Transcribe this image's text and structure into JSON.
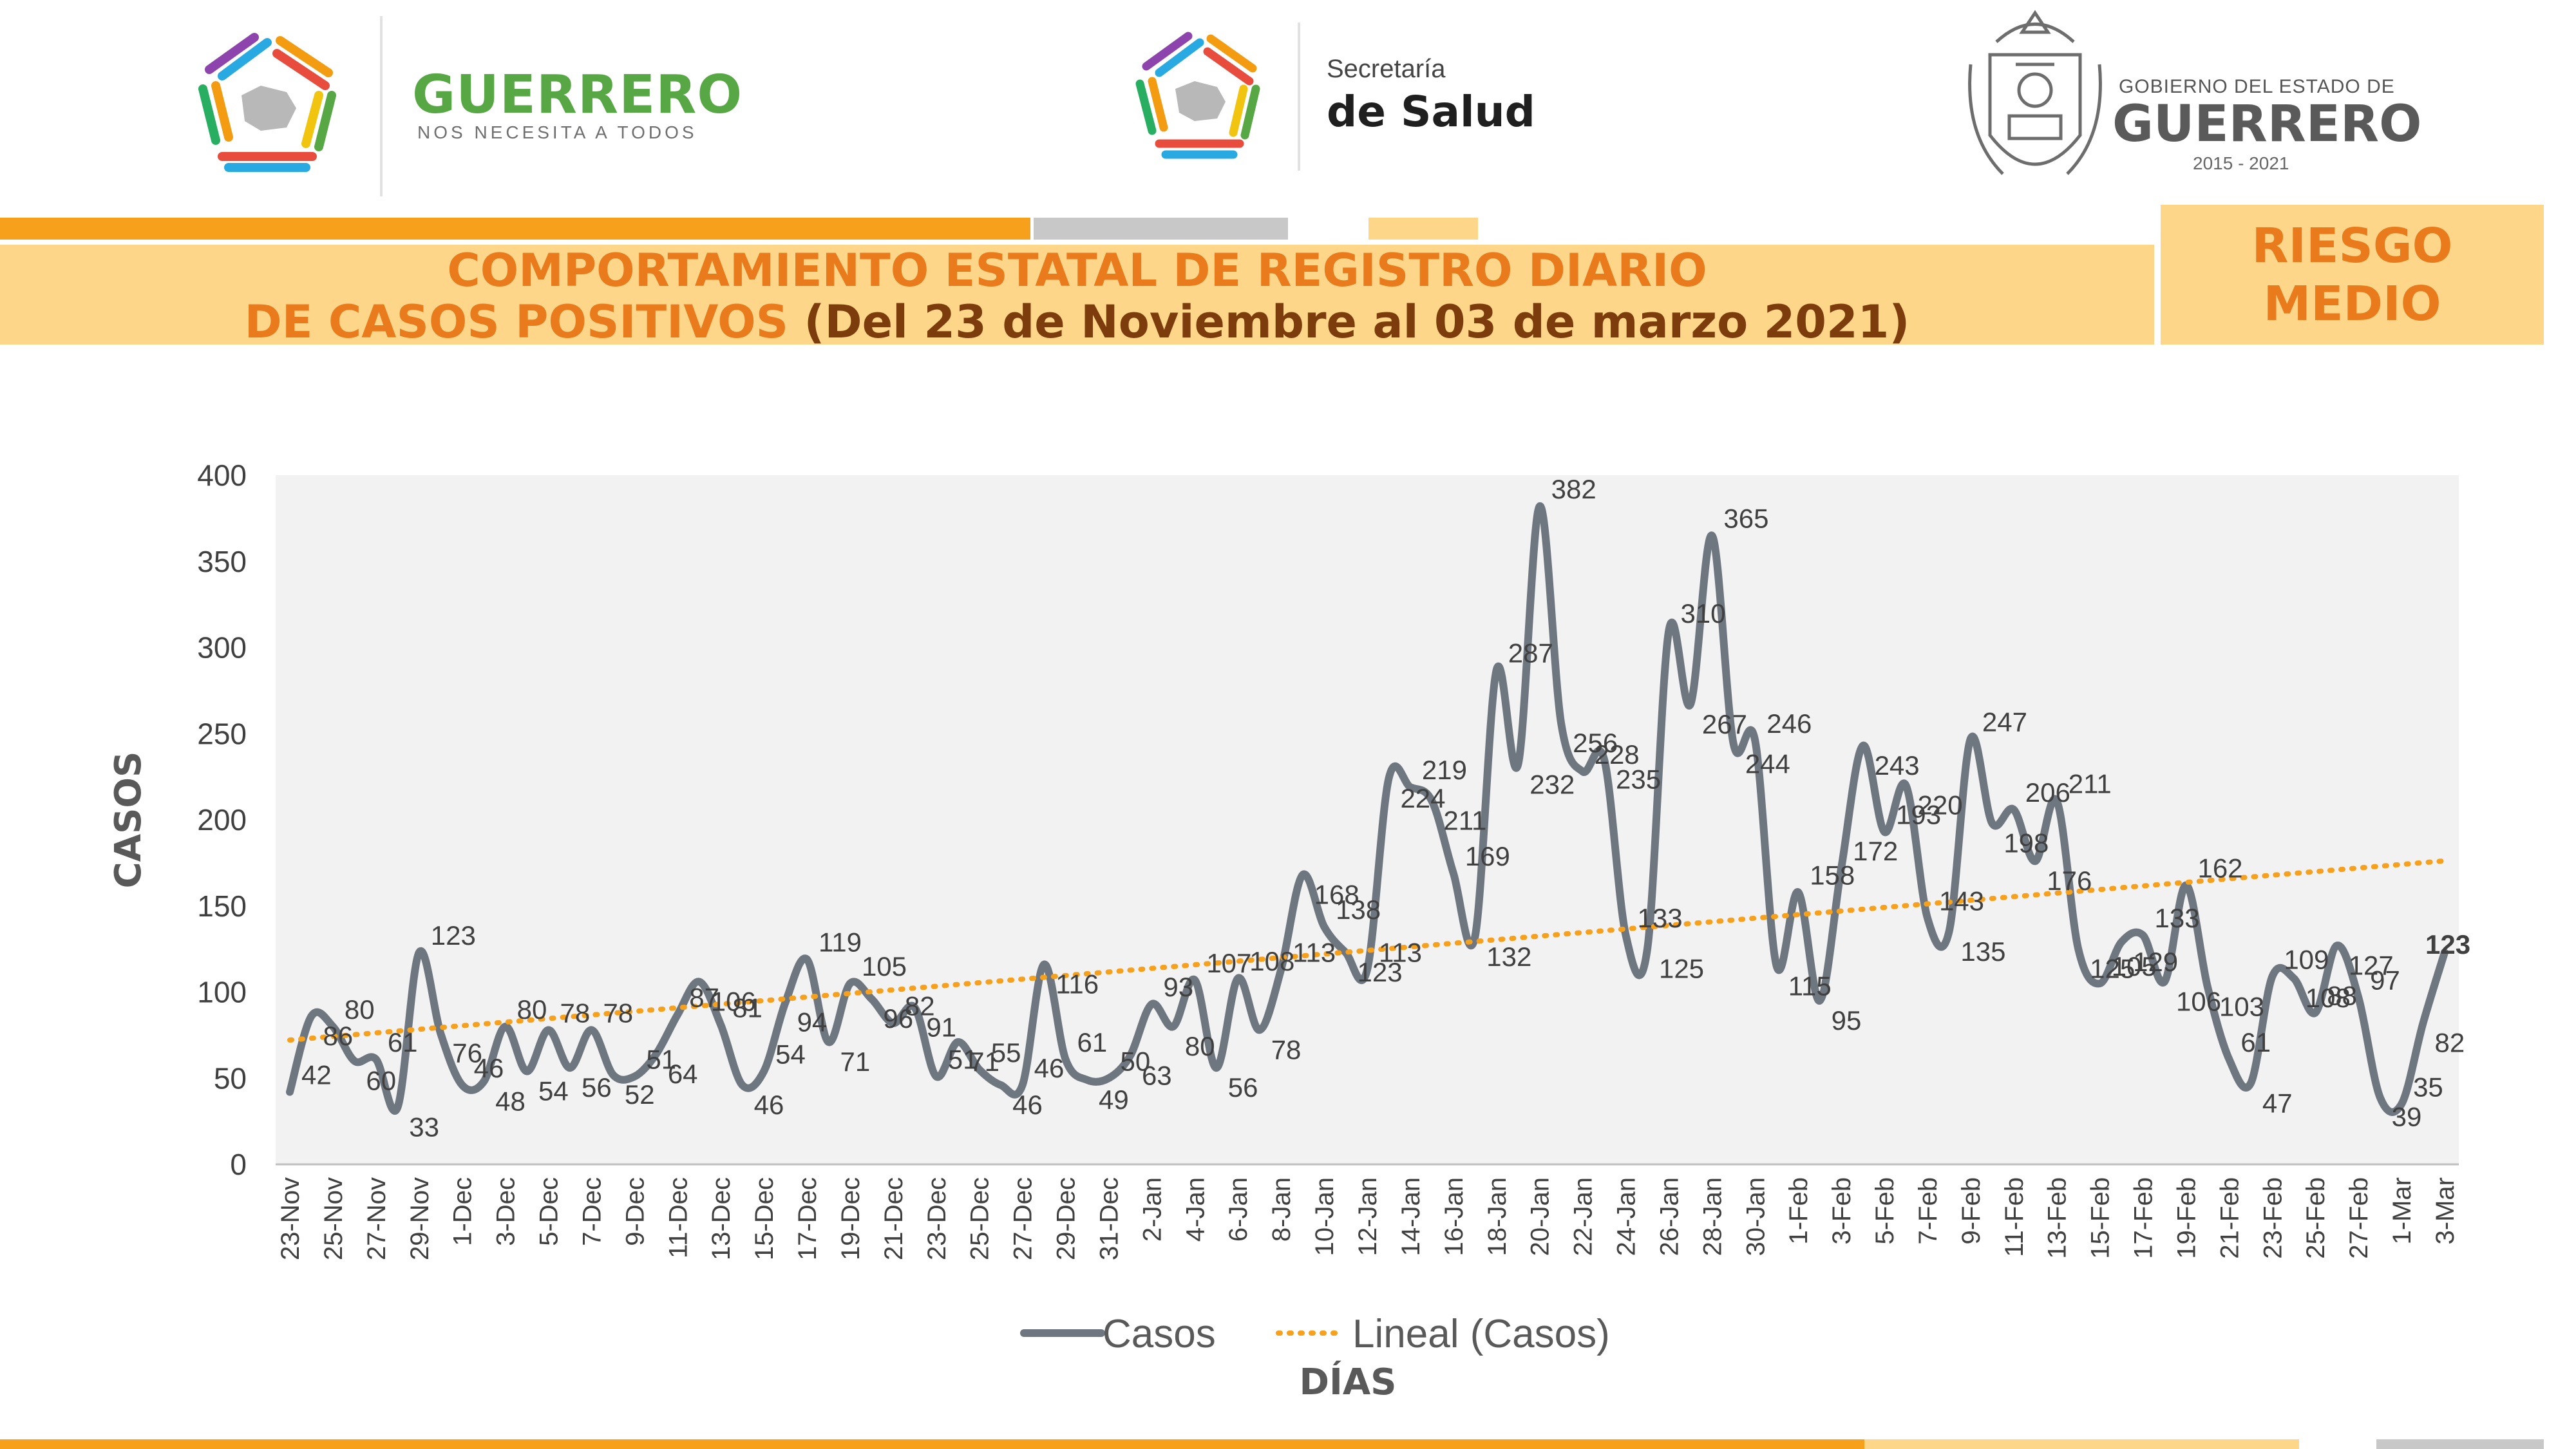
{
  "header": {
    "brand_title": "GUERRERO",
    "brand_subtitle": "NOS NECESITA A TODOS",
    "salud_line1": "Secretaría",
    "salud_line2": "de Salud",
    "gob_line1": "GOBIERNO DEL ESTADO DE",
    "gob_line2": "GUERRERO",
    "gob_years": "2015 - 2021",
    "colors": {
      "orange": "#f7a01c",
      "gray": "#c8c8c8",
      "light": "#fed68a",
      "green": "#57a845"
    }
  },
  "title": {
    "line1": "COMPORTAMIENTO ESTATAL DE REGISTRO DIARIO",
    "line2_main": "DE CASOS POSITIVOS",
    "line2_range": "(Del 23 de Noviembre al 03 de marzo 2021)"
  },
  "risk": {
    "line1": "RIESGO",
    "line2": "MEDIO"
  },
  "chart_data": {
    "type": "line",
    "ylabel": "CASOS",
    "xlabel": "DÍAS",
    "ylim": [
      0,
      400
    ],
    "yticks": [
      0,
      50,
      100,
      150,
      200,
      250,
      300,
      350,
      400
    ],
    "grid": false,
    "legend_position": "bottom",
    "x": [
      "23-Nov",
      "24-Nov",
      "25-Nov",
      "26-Nov",
      "27-Nov",
      "28-Nov",
      "29-Nov",
      "30-Nov",
      "1-Dec",
      "2-Dec",
      "3-Dec",
      "4-Dec",
      "5-Dec",
      "6-Dec",
      "7-Dec",
      "8-Dec",
      "9-Dec",
      "10-Dec",
      "11-Dec",
      "12-Dec",
      "13-Dec",
      "14-Dec",
      "15-Dec",
      "16-Dec",
      "17-Dec",
      "18-Dec",
      "19-Dec",
      "20-Dec",
      "21-Dec",
      "22-Dec",
      "23-Dec",
      "24-Dec",
      "25-Dec",
      "26-Dec",
      "27-Dec",
      "28-Dec",
      "29-Dec",
      "30-Dec",
      "31-Dec",
      "1-Jan",
      "2-Jan",
      "3-Jan",
      "4-Jan",
      "5-Jan",
      "6-Jan",
      "7-Jan",
      "8-Jan",
      "9-Jan",
      "10-Jan",
      "11-Jan",
      "12-Jan",
      "13-Jan",
      "14-Jan",
      "15-Jan",
      "16-Jan",
      "17-Jan",
      "18-Jan",
      "19-Jan",
      "20-Jan",
      "21-Jan",
      "22-Jan",
      "23-Jan",
      "24-Jan",
      "25-Jan",
      "26-Jan",
      "27-Jan",
      "28-Jan",
      "29-Jan",
      "30-Jan",
      "31-Jan",
      "1-Feb",
      "2-Feb",
      "3-Feb",
      "4-Feb",
      "5-Feb",
      "6-Feb",
      "7-Feb",
      "8-Feb",
      "9-Feb",
      "10-Feb",
      "11-Feb",
      "12-Feb",
      "13-Feb",
      "14-Feb",
      "15-Feb",
      "16-Feb",
      "17-Feb",
      "18-Feb",
      "19-Feb",
      "20-Feb",
      "21-Feb",
      "22-Feb",
      "23-Feb",
      "24-Feb",
      "25-Feb",
      "26-Feb",
      "27-Feb",
      "28-Feb",
      "1-Mar",
      "2-Mar",
      "3-Mar"
    ],
    "xtick_labels": [
      "23-Nov",
      "25-Nov",
      "27-Nov",
      "29-Nov",
      "1-Dec",
      "3-Dec",
      "5-Dec",
      "7-Dec",
      "9-Dec",
      "11-Dec",
      "13-Dec",
      "15-Dec",
      "17-Dec",
      "19-Dec",
      "21-Dec",
      "23-Dec",
      "25-Dec",
      "27-Dec",
      "29-Dec",
      "31-Dec",
      "2-Jan",
      "4-Jan",
      "6-Jan",
      "8-Jan",
      "10-Jan",
      "12-Jan",
      "14-Jan",
      "16-Jan",
      "18-Jan",
      "20-Jan",
      "22-Jan",
      "24-Jan",
      "26-Jan",
      "28-Jan",
      "30-Jan",
      "1-Feb",
      "3-Feb",
      "5-Feb",
      "7-Feb",
      "9-Feb",
      "11-Feb",
      "13-Feb",
      "15-Feb",
      "17-Feb",
      "19-Feb",
      "21-Feb",
      "23-Feb",
      "25-Feb",
      "27-Feb",
      "1-Mar",
      "3-Mar"
    ],
    "series": [
      {
        "name": "Casos",
        "color": "#6e7780",
        "values": [
          42,
          86,
          80,
          60,
          61,
          33,
          123,
          76,
          46,
          48,
          80,
          54,
          78,
          56,
          78,
          52,
          51,
          64,
          87,
          106,
          81,
          46,
          54,
          94,
          119,
          71,
          105,
          96,
          82,
          91,
          51,
          71,
          55,
          46,
          46,
          116,
          61,
          49,
          50,
          63,
          93,
          80,
          107,
          56,
          108,
          78,
          113,
          168,
          138,
          123,
          113,
          224,
          219,
          211,
          169,
          132,
          287,
          232,
          382,
          256,
          228,
          235,
          133,
          125,
          310,
          267,
          365,
          244,
          246,
          115,
          158,
          95,
          172,
          243,
          193,
          220,
          143,
          135,
          247,
          198,
          206,
          176,
          211,
          125,
          105,
          129,
          133,
          106,
          162,
          103,
          61,
          47,
          109,
          108,
          88,
          127,
          97,
          39,
          35,
          82,
          123
        ]
      },
      {
        "name": "Lineal (Casos)",
        "color": "#f7a01c",
        "style": "dotted",
        "trend": "linear"
      }
    ]
  }
}
